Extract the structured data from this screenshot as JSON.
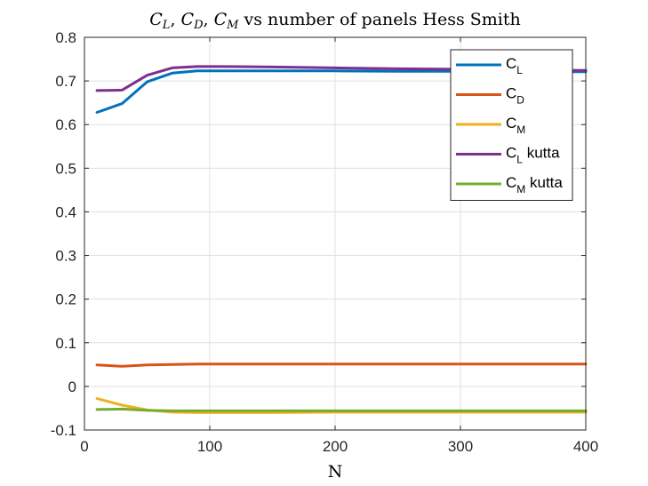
{
  "chart_data": {
    "type": "line",
    "title": {
      "parts": [
        {
          "text": "C",
          "italic": true
        },
        {
          "text": "L",
          "italic": true,
          "sub": true
        },
        {
          "text": ", ",
          "italic": false
        },
        {
          "text": "C",
          "italic": true
        },
        {
          "text": "D",
          "italic": true,
          "sub": true
        },
        {
          "text": ", ",
          "italic": false
        },
        {
          "text": "C",
          "italic": true
        },
        {
          "text": "M",
          "italic": true,
          "sub": true
        },
        {
          "text": " vs number of panels Hess Smith",
          "italic": false
        }
      ]
    },
    "xlabel": "N",
    "ylabel": "",
    "xlim": [
      0,
      400
    ],
    "ylim": [
      -0.1,
      0.8
    ],
    "xticks": [
      0,
      100,
      200,
      300,
      400
    ],
    "xtick_labels": [
      "0",
      "100",
      "200",
      "300",
      "400"
    ],
    "yticks": [
      -0.1,
      0,
      0.1,
      0.2,
      0.3,
      0.4,
      0.5,
      0.6,
      0.7,
      0.8
    ],
    "ytick_labels": [
      "-0.1",
      "0",
      "0.1",
      "0.2",
      "0.3",
      "0.4",
      "0.5",
      "0.6",
      "0.7",
      "0.8"
    ],
    "grid": true,
    "legend_position": "top-right",
    "x": [
      10,
      30,
      50,
      70,
      90,
      110,
      150,
      200,
      250,
      300,
      350,
      400
    ],
    "series": [
      {
        "name": "C",
        "sub": "L",
        "suffix": "",
        "color": "#0072BD",
        "values": [
          0.628,
          0.648,
          0.698,
          0.718,
          0.723,
          0.723,
          0.723,
          0.723,
          0.722,
          0.722,
          0.721,
          0.721
        ]
      },
      {
        "name": "C",
        "sub": "D",
        "suffix": "",
        "color": "#D95319",
        "values": [
          0.049,
          0.046,
          0.049,
          0.05,
          0.051,
          0.051,
          0.051,
          0.051,
          0.051,
          0.051,
          0.051,
          0.051
        ]
      },
      {
        "name": "C",
        "sub": "M",
        "suffix": "",
        "color": "#EDB120",
        "values": [
          -0.028,
          -0.043,
          -0.054,
          -0.059,
          -0.06,
          -0.06,
          -0.06,
          -0.059,
          -0.059,
          -0.059,
          -0.059,
          -0.059
        ]
      },
      {
        "name": "C",
        "sub": "L",
        "suffix": "kutta",
        "color": "#7E2F8E",
        "values": [
          0.678,
          0.679,
          0.713,
          0.73,
          0.733,
          0.733,
          0.732,
          0.73,
          0.728,
          0.727,
          0.725,
          0.724
        ]
      },
      {
        "name": "C",
        "sub": "M",
        "suffix": "kutta",
        "color": "#77AC30",
        "values": [
          -0.053,
          -0.052,
          -0.055,
          -0.056,
          -0.056,
          -0.056,
          -0.056,
          -0.056,
          -0.056,
          -0.056,
          -0.056,
          -0.056
        ]
      }
    ]
  }
}
